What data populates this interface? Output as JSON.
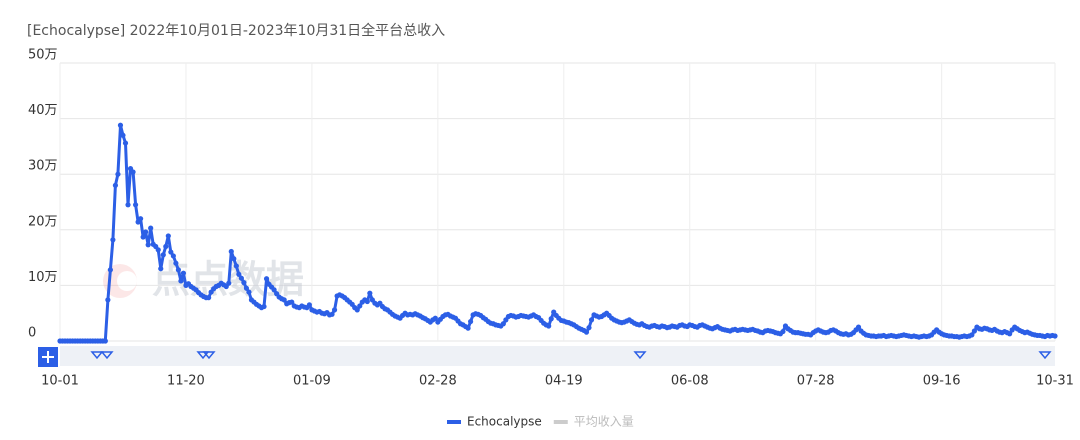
{
  "chart_data": {
    "type": "line",
    "title": "[Echocalypse]  2022年10月01日-2023年10月31日全平台总收入",
    "watermark": "点点数据",
    "categories": [
      "10-01",
      null,
      null,
      null,
      null,
      null,
      null,
      null,
      null,
      null,
      null,
      null,
      null,
      null,
      null,
      null,
      null,
      null,
      null,
      null,
      null,
      null,
      null,
      null,
      null,
      null,
      null,
      null,
      null,
      null,
      null,
      null,
      null,
      null,
      null,
      null,
      null,
      null,
      null,
      null,
      null,
      null,
      null,
      null,
      null,
      null,
      null,
      null,
      null,
      null,
      "11-20",
      null,
      null,
      null,
      null,
      null,
      null,
      null,
      null,
      null,
      null,
      null,
      null,
      null,
      null,
      null,
      null,
      null,
      null,
      null,
      null,
      null,
      null,
      null,
      null,
      null,
      null,
      null,
      null,
      null,
      null,
      null,
      null,
      null,
      null,
      null,
      null,
      null,
      null,
      null,
      null,
      null,
      null,
      null,
      null,
      null,
      null,
      null,
      null,
      null,
      "01-09",
      null,
      null,
      null,
      null,
      null,
      null,
      null,
      null,
      null,
      null,
      null,
      null,
      null,
      null,
      null,
      null,
      null,
      null,
      null,
      null,
      null,
      null,
      null,
      null,
      null,
      null,
      null,
      null,
      null,
      null,
      null,
      null,
      null,
      null,
      null,
      null,
      null,
      null,
      null,
      null,
      null,
      null,
      null,
      null,
      null,
      null,
      null,
      null,
      null,
      "02-28",
      null,
      null,
      null,
      null,
      null,
      null,
      null,
      null,
      null,
      null,
      null,
      null,
      null,
      null,
      null,
      null,
      null,
      null,
      null,
      null,
      null,
      null,
      null,
      null,
      null,
      null,
      null,
      null,
      null,
      null,
      null,
      null,
      null,
      null,
      null,
      null,
      null,
      null,
      null,
      null,
      null,
      null,
      null,
      null,
      null,
      null,
      null,
      null,
      null,
      "04-19",
      null,
      null,
      null,
      null,
      null,
      null,
      null,
      null,
      null,
      null,
      null,
      null,
      null,
      null,
      null,
      null,
      null,
      null,
      null,
      null,
      null,
      null,
      null,
      null,
      null,
      null,
      null,
      null,
      null,
      null,
      null,
      null,
      null,
      null,
      null,
      null,
      null,
      null,
      null,
      null,
      null,
      null,
      null,
      null,
      null,
      null,
      null,
      null,
      null,
      "06-08",
      null,
      null,
      null,
      null,
      null,
      null,
      null,
      null,
      null,
      null,
      null,
      null,
      null,
      null,
      null,
      null,
      null,
      null,
      null,
      null,
      null,
      null,
      null,
      null,
      null,
      null,
      null,
      null,
      null,
      null,
      null,
      null,
      null,
      null,
      null,
      null,
      null,
      null,
      null,
      null,
      null,
      null,
      null,
      null,
      null,
      null,
      null,
      null,
      null,
      "07-28",
      null,
      null,
      null,
      null,
      null,
      null,
      null,
      null,
      null,
      null,
      null,
      null,
      null,
      null,
      null,
      null,
      null,
      null,
      null,
      null,
      null,
      null,
      null,
      null,
      null,
      null,
      null,
      null,
      null,
      null,
      null,
      null,
      null,
      null,
      null,
      null,
      null,
      null,
      null,
      null,
      null,
      null,
      null,
      null,
      null,
      null,
      null,
      null,
      null,
      "09-16",
      null,
      null,
      null,
      null,
      null,
      null,
      null,
      null,
      null,
      null,
      null,
      null,
      null,
      null,
      null,
      null,
      null,
      null,
      null,
      null,
      null,
      null,
      null,
      null,
      null,
      null,
      null,
      null,
      null,
      null,
      null,
      null,
      null,
      null,
      null,
      null,
      null,
      null,
      null,
      null,
      null,
      null,
      null,
      null,
      "10-31"
    ],
    "series": [
      {
        "name": "Echocalypse",
        "color": "#2c5fe6",
        "values": [
          0,
          0,
          0,
          0,
          0,
          0,
          0,
          0,
          0,
          0,
          0,
          0,
          0,
          0,
          0,
          0,
          0,
          0,
          0,
          7.4,
          12.8,
          18.2,
          28,
          30,
          38.8,
          37,
          35.6,
          24.5,
          31,
          30.4,
          24.5,
          21.4,
          22,
          18.7,
          19.6,
          17.3,
          20.3,
          17.4,
          17,
          16.4,
          13,
          15.5,
          17,
          18.9,
          16,
          15.3,
          14,
          12.8,
          10.8,
          12.2,
          10,
          10.3,
          9.8,
          9.5,
          9.2,
          8.7,
          8.3,
          8,
          7.8,
          7.8,
          8.8,
          9.4,
          9.8,
          10,
          10.4,
          10.1,
          9.8,
          10.4,
          16.1,
          14.8,
          13.5,
          12,
          11.3,
          10.5,
          9.5,
          8.8,
          7.4,
          7,
          6.6,
          6.3,
          6,
          6.2,
          11.2,
          10.2,
          9.7,
          9.2,
          8.5,
          7.9,
          7.6,
          7.4,
          6.7,
          6.9,
          7,
          6.3,
          6.1,
          6,
          6.3,
          6.1,
          6,
          6.5,
          5.6,
          5.4,
          5.2,
          5.3,
          5,
          4.9,
          5.1,
          4.7,
          4.8,
          5.6,
          8.1,
          8.3,
          8.1,
          7.8,
          7.4,
          7,
          6.6,
          6,
          5.6,
          6.3,
          7,
          7.4,
          7.1,
          8.6,
          7.4,
          6.8,
          6.5,
          6.8,
          6.2,
          5.8,
          5.6,
          5.2,
          4.8,
          4.5,
          4.3,
          4.1,
          4.6,
          5,
          4.7,
          4.8,
          4.7,
          4.9,
          4.7,
          4.5,
          4.2,
          4,
          3.7,
          3.4,
          3.8,
          4.1,
          3.4,
          3.9,
          4.4,
          4.7,
          4.8,
          4.5,
          4.3,
          4.1,
          3.6,
          3.1,
          2.9,
          2.6,
          2.3,
          3.5,
          4.7,
          4.9,
          4.8,
          4.6,
          4.2,
          3.9,
          3.5,
          3.2,
          3.1,
          2.9,
          2.8,
          2.7,
          3.1,
          3.8,
          4.4,
          4.6,
          4.5,
          4.3,
          4.4,
          4.6,
          4.5,
          4.4,
          4.3,
          4.5,
          4.7,
          4.4,
          4.2,
          3.7,
          3.2,
          2.9,
          2.7,
          4,
          5.2,
          4.6,
          4.1,
          3.7,
          3.6,
          3.4,
          3.3,
          3.1,
          2.9,
          2.6,
          2.3,
          2.1,
          1.9,
          1.6,
          2.4,
          3.8,
          4.7,
          4.5,
          4.3,
          4.4,
          4.7,
          5,
          4.6,
          4.1,
          3.8,
          3.6,
          3.4,
          3.3,
          3.4,
          3.6,
          3.8,
          3.5,
          3.2,
          3,
          2.9,
          3.1,
          2.8,
          2.6,
          2.5,
          2.7,
          2.8,
          2.6,
          2.5,
          2.7,
          2.6,
          2.4,
          2.5,
          2.7,
          2.6,
          2.5,
          2.8,
          2.9,
          2.7,
          2.6,
          2.9,
          2.8,
          2.6,
          2.5,
          2.8,
          2.9,
          2.7,
          2.5,
          2.3,
          2.2,
          2.4,
          2.6,
          2.3,
          2.1,
          2,
          1.9,
          1.8,
          2,
          2.1,
          1.9,
          2,
          2.1,
          2,
          1.9,
          2,
          2.1,
          1.9,
          1.8,
          1.6,
          1.5,
          1.8,
          1.9,
          1.8,
          1.7,
          1.5,
          1.4,
          1.3,
          1.7,
          2.7,
          2.2,
          1.9,
          1.6,
          1.5,
          1.5,
          1.4,
          1.3,
          1.2,
          1.2,
          1.1,
          1.5,
          1.8,
          2,
          1.8,
          1.6,
          1.5,
          1.6,
          1.9,
          2,
          1.8,
          1.5,
          1.3,
          1.2,
          1.3,
          1.1,
          1.2,
          1.5,
          2,
          2.5,
          1.8,
          1.4,
          1.1,
          1,
          0.9,
          0.9,
          0.8,
          0.9,
          0.9,
          1,
          0.8,
          0.9,
          1,
          0.9,
          0.8,
          0.9,
          1,
          1.1,
          1,
          0.9,
          0.8,
          0.9,
          0.8,
          0.7,
          0.8,
          0.9,
          0.8,
          0.9,
          1.1,
          1.6,
          2,
          1.6,
          1.3,
          1.1,
          1,
          0.9,
          0.9,
          0.8,
          0.8,
          0.7,
          0.8,
          0.9,
          0.8,
          0.9,
          1.1,
          1.8,
          2.5,
          2.2,
          2.1,
          2.3,
          2.2,
          2,
          1.9,
          2.1,
          1.8,
          1.6,
          1.5,
          1.7,
          1.5,
          1.3,
          2,
          2.5,
          2.2,
          1.9,
          1.7,
          1.5,
          1.6,
          1.4,
          1.2,
          1.1,
          1,
          1,
          0.9,
          0.8,
          1,
          0.9,
          1,
          0.9
        ]
      }
    ],
    "inactive_legend": {
      "name": "平均收入量",
      "color": "#cccccc"
    },
    "ylim": [
      0,
      50
    ],
    "yticks": [
      {
        "value": 0,
        "label": "0"
      },
      {
        "value": 10,
        "label": "10万"
      },
      {
        "value": 20,
        "label": "20万"
      },
      {
        "value": 30,
        "label": "30万"
      },
      {
        "value": 40,
        "label": "40万"
      },
      {
        "value": 50,
        "label": "50万"
      }
    ],
    "grid": true
  }
}
